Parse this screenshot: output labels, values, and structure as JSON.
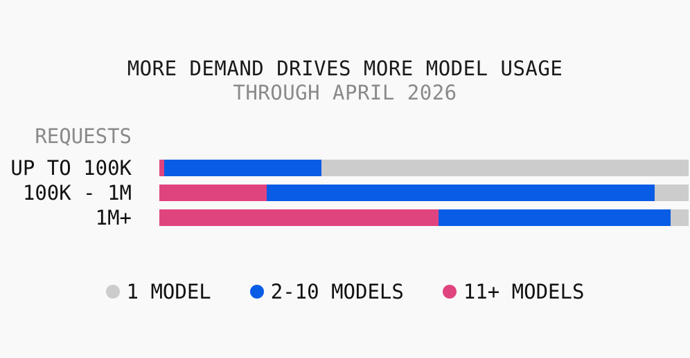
{
  "chart_data": {
    "type": "bar",
    "orientation": "horizontal",
    "stacked": true,
    "normalized": true,
    "title": "MORE DEMAND DRIVES MORE MODEL USAGE",
    "subtitle": "THROUGH APRIL 2026",
    "ylabel": "REQUESTS",
    "xlabel": "",
    "categories": [
      "UP TO 100K",
      "100K - 1M",
      "1M+"
    ],
    "series": [
      {
        "name": "11+ MODELS",
        "color": "#e0447f",
        "values": [
          0.9,
          20.3,
          52.8
        ]
      },
      {
        "name": "2-10 MODELS",
        "color": "#095ce6",
        "values": [
          29.7,
          73.3,
          43.8
        ]
      },
      {
        "name": "1 MODEL",
        "color": "#cccccc",
        "values": [
          69.4,
          6.4,
          3.4
        ]
      }
    ],
    "legend": {
      "placement": "bottom",
      "order": [
        "1 MODEL",
        "2-10 MODELS",
        "11+ MODELS"
      ]
    },
    "xlim": [
      0,
      100
    ],
    "grid": false
  }
}
